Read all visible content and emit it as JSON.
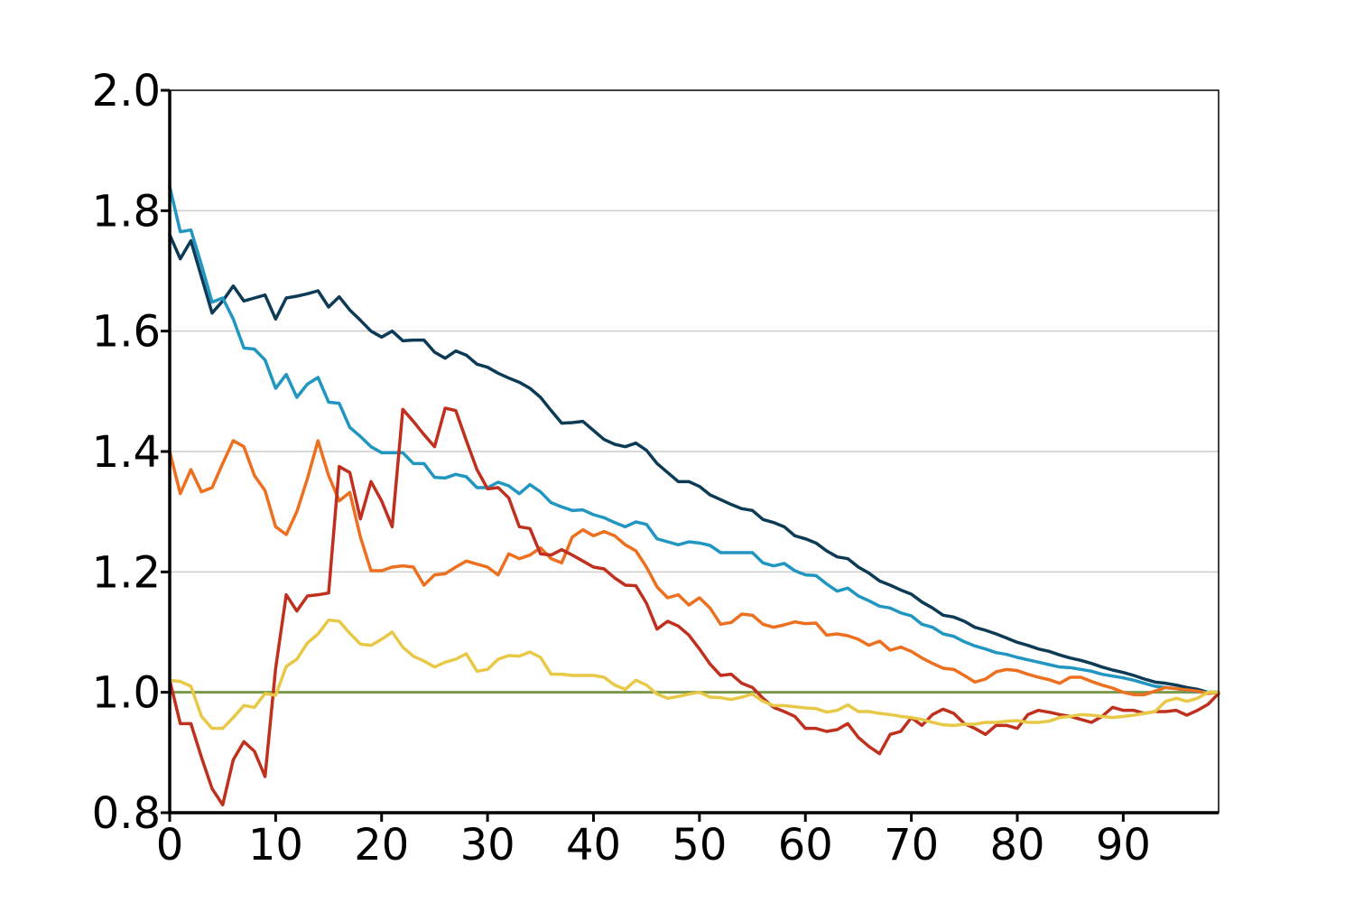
{
  "chart_data": {
    "type": "line",
    "title": "",
    "xlabel": "",
    "ylabel": "",
    "xlim": [
      0,
      99
    ],
    "ylim": [
      0.8,
      2.0
    ],
    "xticks": [
      0,
      10,
      20,
      30,
      40,
      50,
      60,
      70,
      80,
      90
    ],
    "xtick_labels": [
      "0",
      "10",
      "20",
      "30",
      "40",
      "50",
      "60",
      "70",
      "80",
      "90"
    ],
    "yticks": [
      0.8,
      1.0,
      1.2,
      1.4,
      1.6,
      1.8,
      2.0
    ],
    "ytick_labels": [
      "0.8",
      "1.0",
      "1.2",
      "1.4",
      "1.6",
      "1.8",
      "2.0"
    ],
    "grid": "horizontal",
    "legend": "none",
    "reference_line": {
      "y": 1.0,
      "color": "#7a9a4a"
    },
    "x": [
      0,
      1,
      2,
      3,
      4,
      5,
      6,
      7,
      8,
      9,
      10,
      11,
      12,
      13,
      14,
      15,
      16,
      17,
      18,
      19,
      20,
      21,
      22,
      23,
      24,
      25,
      26,
      27,
      28,
      29,
      30,
      31,
      32,
      33,
      34,
      35,
      36,
      37,
      38,
      39,
      40,
      41,
      42,
      43,
      44,
      45,
      46,
      47,
      48,
      49,
      50,
      51,
      52,
      53,
      54,
      55,
      56,
      57,
      58,
      59,
      60,
      61,
      62,
      63,
      64,
      65,
      66,
      67,
      68,
      69,
      70,
      71,
      72,
      73,
      74,
      75,
      76,
      77,
      78,
      79,
      80,
      81,
      82,
      83,
      84,
      85,
      86,
      87,
      88,
      89,
      90,
      91,
      92,
      93,
      94,
      95,
      96,
      97,
      98,
      99
    ],
    "series": [
      {
        "color": "#0d3b55",
        "values": [
          1.76,
          1.72,
          1.75,
          1.69,
          1.63,
          1.65,
          1.675,
          1.65,
          1.655,
          1.66,
          1.62,
          1.655,
          1.658,
          1.662,
          1.667,
          1.64,
          1.657,
          1.635,
          1.618,
          1.6,
          1.59,
          1.6,
          1.584,
          1.585,
          1.585,
          1.565,
          1.555,
          1.567,
          1.56,
          1.545,
          1.54,
          1.53,
          1.522,
          1.515,
          1.505,
          1.49,
          1.468,
          1.447,
          1.448,
          1.45,
          1.435,
          1.42,
          1.412,
          1.408,
          1.414,
          1.402,
          1.38,
          1.365,
          1.35,
          1.35,
          1.342,
          1.328,
          1.32,
          1.312,
          1.305,
          1.302,
          1.287,
          1.282,
          1.275,
          1.26,
          1.255,
          1.248,
          1.235,
          1.225,
          1.222,
          1.208,
          1.198,
          1.185,
          1.178,
          1.17,
          1.163,
          1.15,
          1.14,
          1.128,
          1.125,
          1.118,
          1.108,
          1.103,
          1.097,
          1.09,
          1.083,
          1.078,
          1.072,
          1.068,
          1.062,
          1.057,
          1.053,
          1.048,
          1.042,
          1.037,
          1.033,
          1.028,
          1.022,
          1.017,
          1.015,
          1.012,
          1.008,
          1.005,
          1.0,
          1.0
        ]
      },
      {
        "color": "#2196c0",
        "values": [
          1.84,
          1.765,
          1.768,
          1.71,
          1.648,
          1.655,
          1.62,
          1.572,
          1.57,
          1.552,
          1.505,
          1.528,
          1.49,
          1.512,
          1.523,
          1.482,
          1.48,
          1.44,
          1.425,
          1.408,
          1.398,
          1.398,
          1.398,
          1.38,
          1.38,
          1.357,
          1.356,
          1.362,
          1.358,
          1.34,
          1.34,
          1.349,
          1.343,
          1.33,
          1.345,
          1.333,
          1.315,
          1.308,
          1.302,
          1.303,
          1.295,
          1.29,
          1.282,
          1.275,
          1.283,
          1.279,
          1.255,
          1.25,
          1.245,
          1.25,
          1.248,
          1.244,
          1.232,
          1.232,
          1.232,
          1.232,
          1.215,
          1.21,
          1.214,
          1.202,
          1.195,
          1.194,
          1.18,
          1.168,
          1.173,
          1.16,
          1.152,
          1.143,
          1.14,
          1.132,
          1.127,
          1.113,
          1.108,
          1.097,
          1.093,
          1.084,
          1.077,
          1.072,
          1.066,
          1.063,
          1.058,
          1.054,
          1.05,
          1.046,
          1.042,
          1.041,
          1.038,
          1.035,
          1.03,
          1.027,
          1.024,
          1.02,
          1.015,
          1.01,
          1.008,
          1.006,
          1.003,
          1.001,
          1.0,
          1.0
        ]
      },
      {
        "color": "#ec7020",
        "values": [
          1.4,
          1.33,
          1.37,
          1.333,
          1.34,
          1.38,
          1.418,
          1.408,
          1.36,
          1.335,
          1.275,
          1.262,
          1.3,
          1.355,
          1.418,
          1.36,
          1.318,
          1.332,
          1.258,
          1.202,
          1.202,
          1.208,
          1.21,
          1.208,
          1.178,
          1.195,
          1.197,
          1.208,
          1.218,
          1.213,
          1.208,
          1.195,
          1.23,
          1.222,
          1.228,
          1.24,
          1.222,
          1.215,
          1.258,
          1.27,
          1.26,
          1.267,
          1.26,
          1.245,
          1.235,
          1.208,
          1.175,
          1.157,
          1.162,
          1.145,
          1.157,
          1.14,
          1.113,
          1.116,
          1.13,
          1.128,
          1.113,
          1.108,
          1.112,
          1.117,
          1.114,
          1.115,
          1.095,
          1.097,
          1.094,
          1.088,
          1.078,
          1.085,
          1.07,
          1.075,
          1.068,
          1.057,
          1.048,
          1.04,
          1.038,
          1.028,
          1.017,
          1.022,
          1.034,
          1.038,
          1.036,
          1.03,
          1.025,
          1.021,
          1.015,
          1.025,
          1.025,
          1.018,
          1.012,
          1.007,
          1.0,
          0.996,
          0.996,
          1.002,
          1.008,
          1.006,
          1.004,
          1.002,
          0.998,
          1.0
        ]
      },
      {
        "color": "#c0301e",
        "values": [
          1.02,
          0.948,
          0.948,
          0.892,
          0.84,
          0.813,
          0.888,
          0.918,
          0.902,
          0.86,
          1.04,
          1.162,
          1.135,
          1.16,
          1.162,
          1.165,
          1.375,
          1.365,
          1.288,
          1.35,
          1.318,
          1.275,
          1.47,
          1.45,
          1.428,
          1.408,
          1.472,
          1.468,
          1.418,
          1.37,
          1.338,
          1.34,
          1.323,
          1.275,
          1.272,
          1.23,
          1.228,
          1.237,
          1.228,
          1.218,
          1.208,
          1.205,
          1.19,
          1.178,
          1.177,
          1.148,
          1.105,
          1.118,
          1.11,
          1.095,
          1.072,
          1.047,
          1.028,
          1.03,
          1.015,
          1.008,
          0.99,
          0.975,
          0.968,
          0.96,
          0.94,
          0.94,
          0.935,
          0.938,
          0.948,
          0.925,
          0.91,
          0.898,
          0.93,
          0.935,
          0.958,
          0.945,
          0.963,
          0.972,
          0.965,
          0.948,
          0.94,
          0.93,
          0.945,
          0.945,
          0.94,
          0.963,
          0.97,
          0.967,
          0.963,
          0.96,
          0.955,
          0.95,
          0.96,
          0.975,
          0.97,
          0.97,
          0.965,
          0.968,
          0.968,
          0.97,
          0.962,
          0.97,
          0.98,
          0.998
        ]
      },
      {
        "color": "#e8c947",
        "values": [
          1.02,
          1.018,
          1.01,
          0.96,
          0.94,
          0.94,
          0.958,
          0.978,
          0.975,
          0.998,
          0.995,
          1.043,
          1.055,
          1.082,
          1.097,
          1.12,
          1.118,
          1.098,
          1.08,
          1.078,
          1.088,
          1.1,
          1.075,
          1.06,
          1.052,
          1.042,
          1.05,
          1.055,
          1.064,
          1.035,
          1.038,
          1.055,
          1.061,
          1.06,
          1.067,
          1.058,
          1.03,
          1.03,
          1.028,
          1.028,
          1.028,
          1.025,
          1.012,
          1.005,
          1.02,
          1.012,
          0.997,
          0.99,
          0.993,
          0.997,
          1.0,
          0.992,
          0.991,
          0.988,
          0.992,
          0.997,
          0.985,
          0.978,
          0.978,
          0.976,
          0.974,
          0.973,
          0.967,
          0.97,
          0.979,
          0.968,
          0.968,
          0.965,
          0.963,
          0.96,
          0.958,
          0.955,
          0.95,
          0.946,
          0.945,
          0.947,
          0.947,
          0.95,
          0.95,
          0.952,
          0.953,
          0.95,
          0.95,
          0.952,
          0.958,
          0.96,
          0.963,
          0.962,
          0.96,
          0.958,
          0.96,
          0.962,
          0.965,
          0.968,
          0.985,
          0.99,
          0.985,
          0.99,
          1.0,
          1.0
        ]
      }
    ]
  }
}
